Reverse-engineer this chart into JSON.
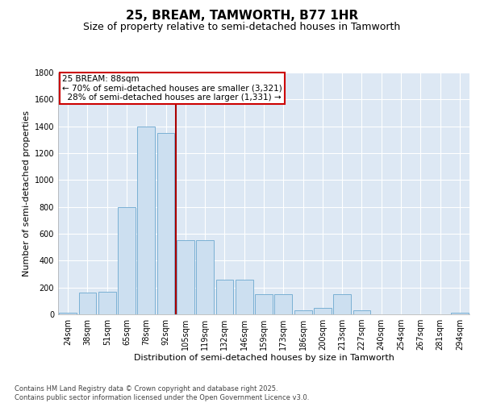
{
  "title1": "25, BREAM, TAMWORTH, B77 1HR",
  "title2": "Size of property relative to semi-detached houses in Tamworth",
  "xlabel": "Distribution of semi-detached houses by size in Tamworth",
  "ylabel": "Number of semi-detached properties",
  "categories": [
    "24sqm",
    "38sqm",
    "51sqm",
    "65sqm",
    "78sqm",
    "92sqm",
    "105sqm",
    "119sqm",
    "132sqm",
    "146sqm",
    "159sqm",
    "173sqm",
    "186sqm",
    "200sqm",
    "213sqm",
    "227sqm",
    "240sqm",
    "254sqm",
    "267sqm",
    "281sqm",
    "294sqm"
  ],
  "values": [
    10,
    160,
    170,
    800,
    1400,
    1350,
    550,
    550,
    260,
    260,
    150,
    150,
    30,
    50,
    150,
    30,
    0,
    0,
    0,
    0,
    10
  ],
  "bar_color": "#ccdff0",
  "bar_edgecolor": "#7ab0d4",
  "vline_xindex": 5.5,
  "vline_color": "#aa0000",
  "annotation_line1": "25 BREAM: 88sqm",
  "annotation_line2": "← 70% of semi-detached houses are smaller (3,321)",
  "annotation_line3": "  28% of semi-detached houses are larger (1,331) →",
  "annotation_box_facecolor": "#ffffff",
  "annotation_box_edgecolor": "#cc0000",
  "ylim": [
    0,
    1800
  ],
  "yticks": [
    0,
    200,
    400,
    600,
    800,
    1000,
    1200,
    1400,
    1600,
    1800
  ],
  "plot_bg": "#dde8f4",
  "grid_color": "#ffffff",
  "footer_text": "Contains HM Land Registry data © Crown copyright and database right 2025.\nContains public sector information licensed under the Open Government Licence v3.0.",
  "title1_fontsize": 11,
  "title2_fontsize": 9,
  "tick_fontsize": 7,
  "label_fontsize": 8,
  "annotation_fontsize": 7.5
}
